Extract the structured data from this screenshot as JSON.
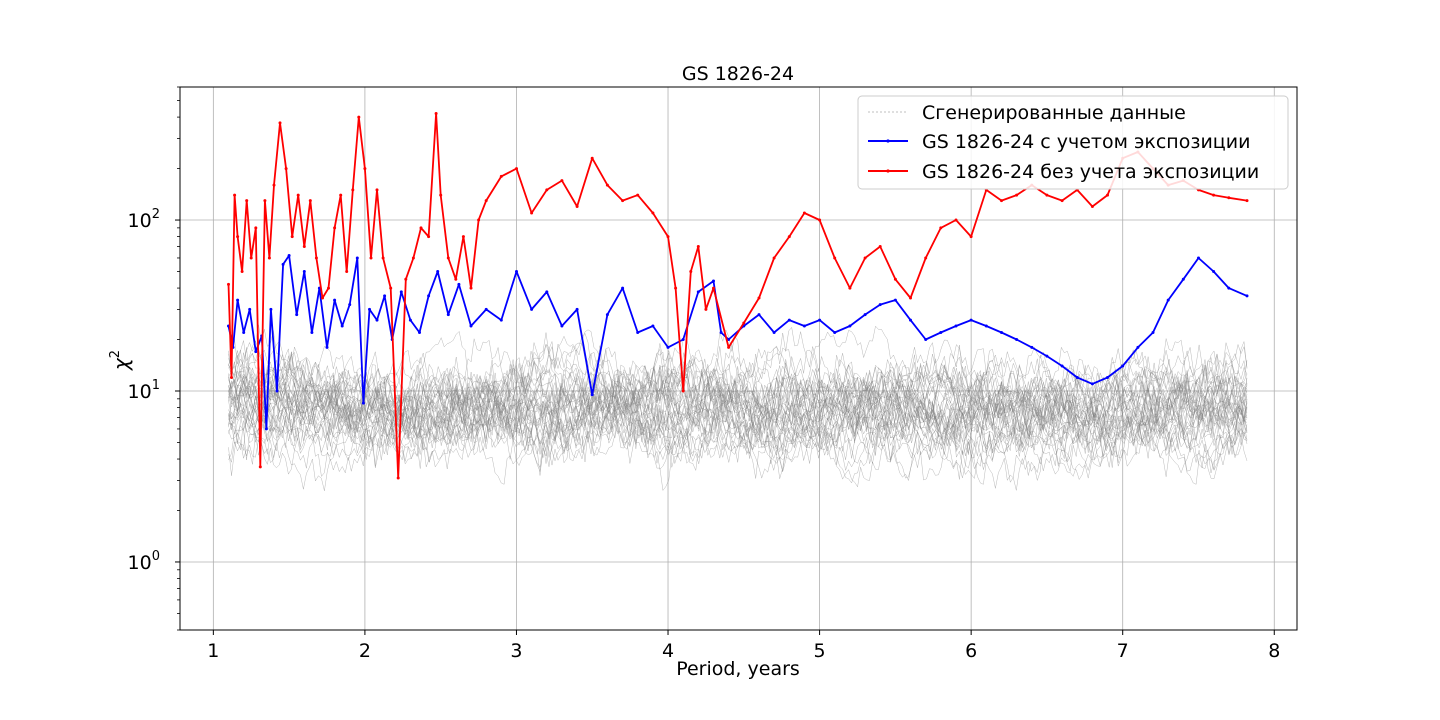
{
  "chart_data": {
    "type": "line",
    "title": "GS 1826-24",
    "xlabel": "Period, years",
    "ylabel_base": "χ",
    "ylabel_sup": "2",
    "xlim": [
      0.78,
      8.15
    ],
    "ylim": [
      0.4,
      600
    ],
    "yscale": "log",
    "grid": true,
    "legend_position": "top-right",
    "x_ticks": [
      {
        "value": 1,
        "label": "1"
      },
      {
        "value": 2,
        "label": "2"
      },
      {
        "value": 3,
        "label": "3"
      },
      {
        "value": 4,
        "label": "4"
      },
      {
        "value": 5,
        "label": "5"
      },
      {
        "value": 6,
        "label": "6"
      },
      {
        "value": 7,
        "label": "7"
      },
      {
        "value": 8,
        "label": "8"
      }
    ],
    "y_ticks": [
      {
        "value": 1,
        "base": "10",
        "exp": "0"
      },
      {
        "value": 10,
        "base": "10",
        "exp": "1"
      },
      {
        "value": 100,
        "base": "10",
        "exp": "2"
      }
    ],
    "generated": {
      "name": "Сгенерированные данные",
      "color": "#808080",
      "count": 40,
      "x_start": 1.1,
      "x_end": 7.82,
      "median": 8,
      "spread_low": 0.6,
      "spread_high": 3.5
    },
    "series": [
      {
        "name": "GS 1826-24 с учетом экспозиции",
        "color": "#0000ff",
        "x": [
          1.1,
          1.13,
          1.16,
          1.2,
          1.24,
          1.28,
          1.32,
          1.35,
          1.38,
          1.42,
          1.46,
          1.5,
          1.55,
          1.6,
          1.65,
          1.7,
          1.75,
          1.8,
          1.85,
          1.9,
          1.95,
          1.99,
          2.03,
          2.08,
          2.13,
          2.18,
          2.24,
          2.3,
          2.36,
          2.42,
          2.48,
          2.55,
          2.62,
          2.7,
          2.8,
          2.9,
          3.0,
          3.1,
          3.2,
          3.3,
          3.4,
          3.5,
          3.6,
          3.7,
          3.8,
          3.9,
          4.0,
          4.1,
          4.2,
          4.3,
          4.35,
          4.4,
          4.5,
          4.6,
          4.7,
          4.8,
          4.9,
          5.0,
          5.1,
          5.2,
          5.3,
          5.4,
          5.5,
          5.6,
          5.7,
          5.8,
          5.9,
          6.0,
          6.1,
          6.2,
          6.3,
          6.4,
          6.5,
          6.6,
          6.7,
          6.8,
          6.9,
          7.0,
          7.1,
          7.2,
          7.3,
          7.4,
          7.5,
          7.6,
          7.7,
          7.82
        ],
        "y": [
          24,
          18,
          34,
          22,
          30,
          17,
          21,
          6,
          30,
          10,
          55,
          62,
          28,
          50,
          22,
          40,
          18,
          34,
          24,
          32,
          60,
          8.5,
          30,
          26,
          36,
          20,
          38,
          26,
          22,
          36,
          50,
          28,
          42,
          24,
          30,
          26,
          50,
          30,
          38,
          24,
          30,
          9.5,
          28,
          40,
          22,
          24,
          18,
          20,
          38,
          44,
          22,
          20,
          24,
          28,
          22,
          26,
          24,
          26,
          22,
          24,
          28,
          32,
          34,
          26,
          20,
          22,
          24,
          26,
          24,
          22,
          20,
          18,
          16,
          14,
          12,
          11,
          12,
          14,
          18,
          22,
          34,
          45,
          60,
          50,
          40,
          36
        ]
      },
      {
        "name": "GS 1826-24 без учета экспозиции",
        "color": "#ff0000",
        "x": [
          1.1,
          1.12,
          1.14,
          1.16,
          1.19,
          1.22,
          1.25,
          1.28,
          1.31,
          1.34,
          1.37,
          1.4,
          1.44,
          1.48,
          1.52,
          1.56,
          1.6,
          1.64,
          1.68,
          1.72,
          1.76,
          1.8,
          1.84,
          1.88,
          1.92,
          1.96,
          2.0,
          2.04,
          2.08,
          2.12,
          2.17,
          2.22,
          2.27,
          2.32,
          2.37,
          2.42,
          2.47,
          2.5,
          2.55,
          2.6,
          2.65,
          2.7,
          2.75,
          2.8,
          2.9,
          3.0,
          3.1,
          3.2,
          3.3,
          3.4,
          3.5,
          3.6,
          3.7,
          3.8,
          3.9,
          4.0,
          4.05,
          4.1,
          4.15,
          4.2,
          4.25,
          4.3,
          4.4,
          4.5,
          4.6,
          4.7,
          4.8,
          4.9,
          5.0,
          5.1,
          5.2,
          5.3,
          5.4,
          5.5,
          5.6,
          5.7,
          5.8,
          5.9,
          6.0,
          6.1,
          6.2,
          6.3,
          6.4,
          6.5,
          6.6,
          6.7,
          6.8,
          6.9,
          7.0,
          7.1,
          7.2,
          7.3,
          7.4,
          7.5,
          7.6,
          7.7,
          7.82
        ],
        "y": [
          42,
          12,
          140,
          80,
          50,
          130,
          60,
          90,
          3.6,
          130,
          60,
          160,
          370,
          200,
          80,
          140,
          70,
          130,
          60,
          35,
          40,
          90,
          140,
          50,
          150,
          400,
          200,
          60,
          150,
          60,
          40,
          3.1,
          45,
          60,
          90,
          80,
          420,
          140,
          60,
          45,
          80,
          40,
          100,
          130,
          180,
          200,
          110,
          150,
          170,
          120,
          230,
          160,
          130,
          140,
          110,
          80,
          40,
          10,
          50,
          70,
          30,
          40,
          18,
          25,
          35,
          60,
          80,
          110,
          100,
          60,
          40,
          60,
          70,
          45,
          35,
          60,
          90,
          100,
          80,
          150,
          130,
          140,
          160,
          140,
          130,
          150,
          120,
          140,
          230,
          250,
          200,
          160,
          170,
          150,
          140,
          135,
          130
        ]
      }
    ]
  }
}
